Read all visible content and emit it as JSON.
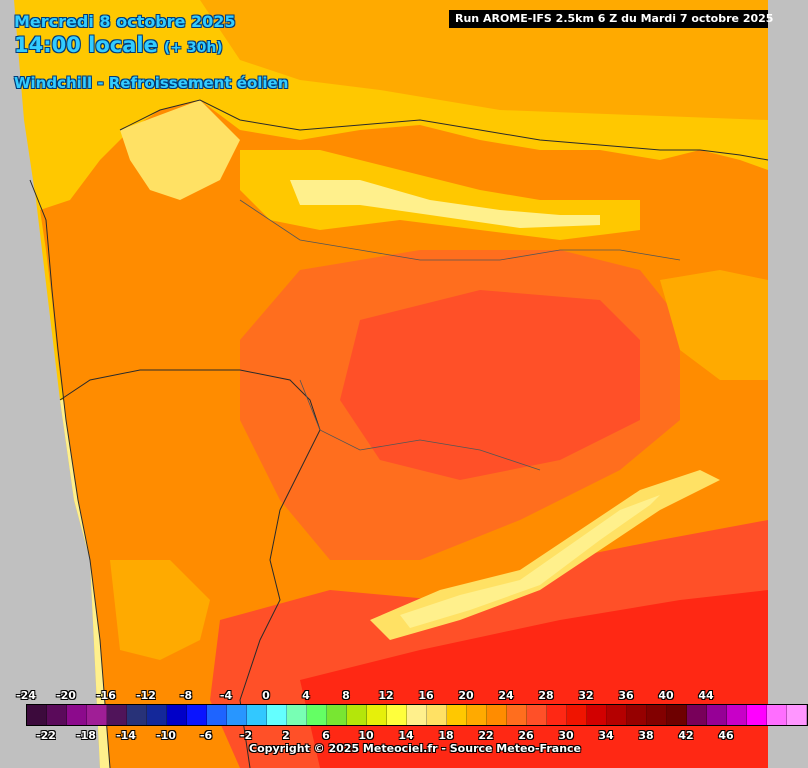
{
  "header": {
    "date": "Mercredi 8 octobre 2025",
    "time": "14:00 locale",
    "lead": "(+ 30h)",
    "parameter": "Windchill - Refroissement éolien"
  },
  "run_info": "Run AROME-IFS 2.5km 6 Z du Mardi 7 octobre 2025",
  "legend": {
    "top_labels": [
      "-24",
      "-20",
      "-16",
      "-12",
      "-8",
      "-4",
      "0",
      "4",
      "8",
      "12",
      "16",
      "20",
      "24",
      "28",
      "32",
      "36",
      "40",
      "44"
    ],
    "bottom_labels": [
      "-22",
      "-18",
      "-14",
      "-10",
      "-6",
      "-2",
      "2",
      "6",
      "10",
      "14",
      "18",
      "22",
      "26",
      "30",
      "34",
      "38",
      "42",
      "46"
    ],
    "colors": [
      "#3c0a3c",
      "#5a0a5a",
      "#8c0a8c",
      "#a01e96",
      "#50145a",
      "#283278",
      "#14289a",
      "#0000c8",
      "#0a14ff",
      "#1e64ff",
      "#2896ff",
      "#32c8ff",
      "#64ffff",
      "#78ffb4",
      "#64ff64",
      "#78e632",
      "#b4e60a",
      "#e6f00a",
      "#ffff3c",
      "#fff08c",
      "#ffe164",
      "#ffc800",
      "#ffaa00",
      "#ff8c00",
      "#ff6e1e",
      "#ff5028",
      "#ff2814",
      "#f01400",
      "#d20000",
      "#b40000",
      "#960000",
      "#820000",
      "#6e0000",
      "#78005a",
      "#960096",
      "#c800c8",
      "#ff00ff",
      "#ff6eff",
      "#ff96ff"
    ]
  },
  "copyright": "Copyright © 2025 Meteociel.fr - Source Meteo-France"
}
